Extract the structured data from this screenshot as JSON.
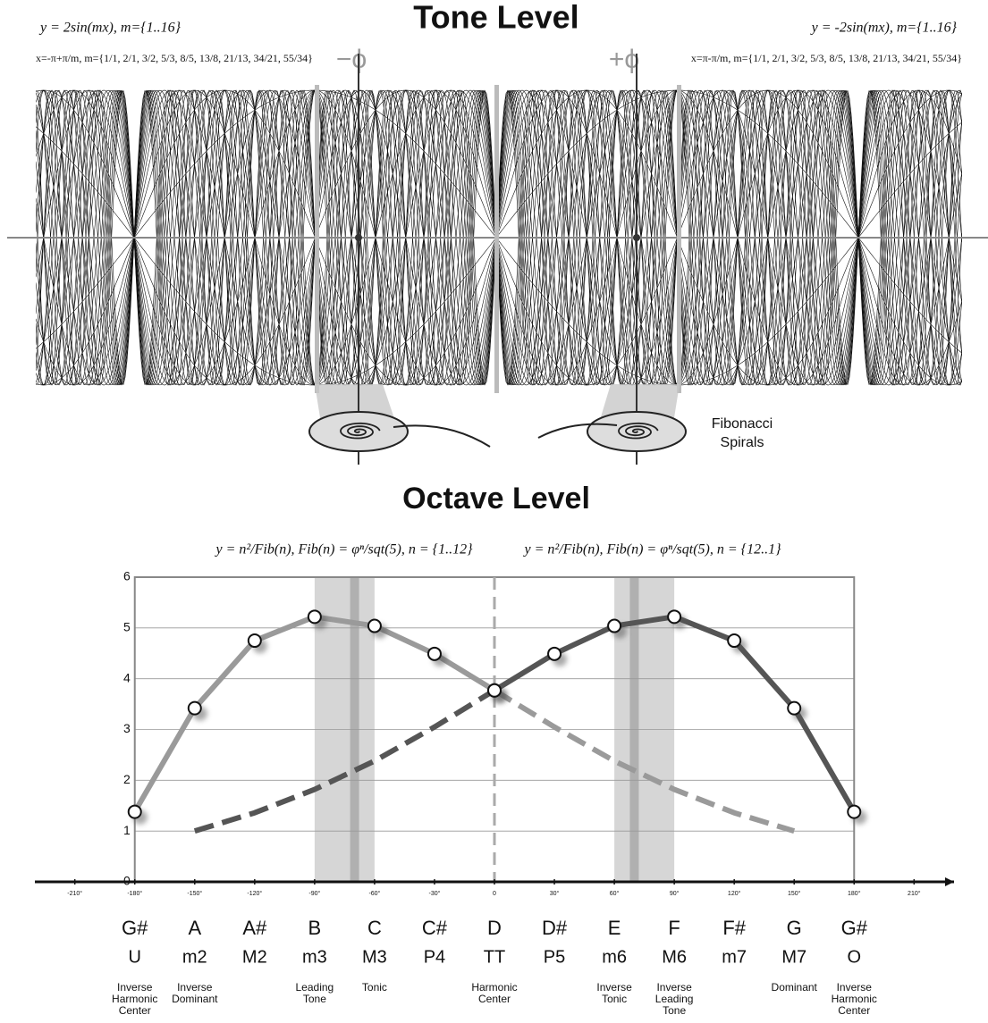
{
  "tone_level": {
    "title": "Tone Level",
    "formula_left": "y = 2sin(mx), m={1..16}",
    "formula_right": "y = -2sin(mx), m={1..16}",
    "x_left": "x=-π+π/m, m={1/1, 2/1, 3/2, 5/3, 8/5, 13/8, 21/13, 34/21, 55/34}",
    "x_right": "x=π-π/m, m={1/1, 2/1, 3/2, 5/3, 8/5, 13/8, 21/13, 34/21, 55/34}",
    "minus_phi": "−ϕ",
    "plus_phi": "+ϕ",
    "spiral_label": [
      "Fibonacci",
      "Spirals"
    ],
    "m": [
      1,
      16
    ]
  },
  "chart_data": {
    "type": "line",
    "title": "Octave Level",
    "formulas": [
      "y = n²/Fib(n), Fib(n) = φⁿ/sqt(5), n = {1..12}",
      "y = n²/Fib(n), Fib(n) = φⁿ/sqt(5), n = {12..1}"
    ],
    "x": [
      -180,
      -150,
      -120,
      -90,
      -60,
      -30,
      0,
      30,
      60,
      90,
      120,
      150,
      180
    ],
    "xlim": [
      -230,
      230
    ],
    "xticks": [
      {
        "value": -210,
        "label": "-210°"
      },
      {
        "value": -180,
        "label": "-180°"
      },
      {
        "value": -150,
        "label": "-150°"
      },
      {
        "value": -120,
        "label": "-120°"
      },
      {
        "value": -90,
        "label": "-90°"
      },
      {
        "value": -60,
        "label": "-60°"
      },
      {
        "value": -30,
        "label": "-30°"
      },
      0,
      {
        "value": 30,
        "label": "30°"
      },
      {
        "value": 60,
        "label": "60°"
      },
      {
        "value": 90,
        "label": "90°"
      },
      {
        "value": 120,
        "label": "120°"
      },
      {
        "value": 150,
        "label": "150°"
      },
      {
        "value": 180,
        "label": "180°"
      },
      {
        "value": 210,
        "label": "210°"
      }
    ],
    "ylim": [
      0,
      6
    ],
    "yticks": [
      0,
      1,
      2,
      3,
      4,
      5,
      6
    ],
    "grid": true,
    "series": [
      {
        "color": "#9a9a9a",
        "dashed": false,
        "markers": true,
        "values": [
          1.38,
          3.42,
          4.75,
          5.22,
          5.04,
          4.49,
          3.77,
          null,
          null,
          null,
          null,
          null,
          null
        ]
      },
      {
        "color": "#9a9a9a",
        "dashed": true,
        "markers": false,
        "values": [
          null,
          null,
          null,
          null,
          null,
          null,
          3.77,
          3.05,
          2.38,
          1.82,
          1.36,
          1.0,
          null
        ]
      },
      {
        "color": "#555555",
        "dashed": false,
        "markers": true,
        "values": [
          null,
          null,
          null,
          null,
          null,
          null,
          3.77,
          4.49,
          5.04,
          5.22,
          4.75,
          3.42,
          1.38
        ]
      },
      {
        "color": "#555555",
        "dashed": true,
        "markers": false,
        "values": [
          null,
          1.0,
          1.36,
          1.82,
          2.38,
          3.05,
          3.77,
          null,
          null,
          null,
          null,
          null,
          null
        ]
      }
    ],
    "bands": [
      {
        "from": -90,
        "to": -60,
        "center": -70
      },
      {
        "from": 60,
        "to": 90,
        "center": 70
      }
    ],
    "vline": 0,
    "notes": [
      "G#",
      "A",
      "A#",
      "B",
      "C",
      "C#",
      "D",
      "D#",
      "E",
      "F",
      "F#",
      "G",
      "G#"
    ],
    "intervals": [
      "U",
      "m2",
      "M2",
      "m3",
      "M3",
      "P4",
      "TT",
      "P5",
      "m6",
      "M6",
      "m7",
      "M7",
      "O"
    ],
    "functions": [
      [
        "Inverse",
        "Harmonic",
        "Center"
      ],
      [
        "Inverse",
        "Dominant"
      ],
      null,
      [
        "Leading",
        "Tone"
      ],
      [
        "Tonic"
      ],
      null,
      [
        "Harmonic",
        "Center"
      ],
      null,
      [
        "Inverse",
        "Tonic"
      ],
      [
        "Inverse",
        "Leading",
        "Tone"
      ],
      null,
      [
        "Dominant"
      ],
      [
        "Inverse",
        "Harmonic",
        "Center"
      ]
    ]
  }
}
